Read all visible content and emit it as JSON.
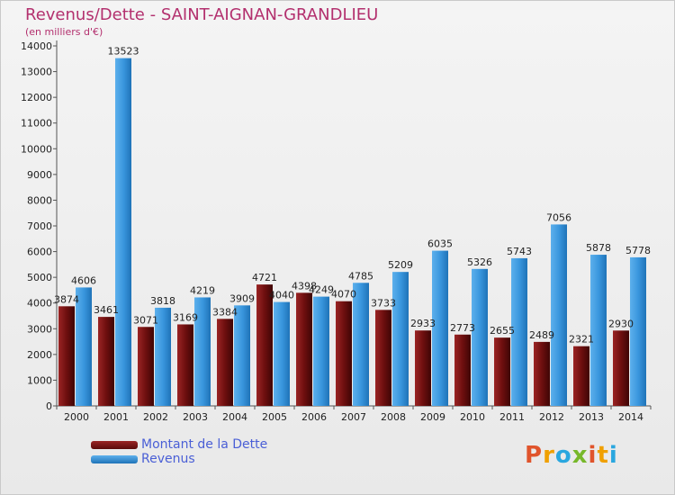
{
  "title": "Revenus/Dette - SAINT-AIGNAN-GRANDLIEU",
  "subtitle": "(en milliers d'€)",
  "colors": {
    "dette": "#7a1212",
    "revenus": "#3a97de",
    "title": "#b3306e"
  },
  "legend": {
    "dette": "Montant de la Dette",
    "revenus": "Revenus"
  },
  "logo": {
    "text": "Proxiti",
    "letters": [
      {
        "ch": "P",
        "color": "#e0542c"
      },
      {
        "ch": "r",
        "color": "#f0a000"
      },
      {
        "ch": "o",
        "color": "#2aa7df"
      },
      {
        "ch": "x",
        "color": "#77b82a"
      },
      {
        "ch": "i",
        "color": "#e0542c"
      },
      {
        "ch": "t",
        "color": "#f0a000"
      },
      {
        "ch": "i",
        "color": "#2aa7df"
      }
    ]
  },
  "chart_data": {
    "type": "bar",
    "title": "Revenus/Dette - SAINT-AIGNAN-GRANDLIEU",
    "ylabel": "(en milliers d'€)",
    "ylim": [
      0,
      14000
    ],
    "yticks": [
      0,
      1000,
      2000,
      3000,
      4000,
      5000,
      6000,
      7000,
      8000,
      9000,
      10000,
      11000,
      12000,
      13000,
      14000
    ],
    "categories": [
      "2000",
      "2001",
      "2002",
      "2003",
      "2004",
      "2005",
      "2006",
      "2007",
      "2008",
      "2009",
      "2010",
      "2011",
      "2012",
      "2013",
      "2014"
    ],
    "series": [
      {
        "name": "Montant de la Dette",
        "values": [
          3874,
          3461,
          3071,
          3169,
          3384,
          4721,
          4398,
          4070,
          3733,
          2933,
          2773,
          2655,
          2489,
          2321,
          2930
        ],
        "labels": [
          "3874",
          "3461",
          "3071",
          "3169",
          "3384",
          "4721",
          "4398",
          "4070",
          "3733",
          "2933",
          "2773",
          "2655",
          "2489",
          "2321",
          "2930"
        ]
      },
      {
        "name": "Revenus",
        "values": [
          4606,
          13523,
          3818,
          4219,
          3909,
          4040,
          4249,
          4785,
          5209,
          6035,
          5326,
          5743,
          7056,
          5878,
          5778
        ],
        "labels": [
          "4606",
          "13523",
          "3818",
          "4219",
          "3909",
          "4040",
          "4249",
          "4785",
          "5209",
          "6035",
          "5326",
          "5743",
          "7056",
          "5878",
          "5778"
        ]
      }
    ],
    "grid": false,
    "legend_position": "bottom-left"
  }
}
